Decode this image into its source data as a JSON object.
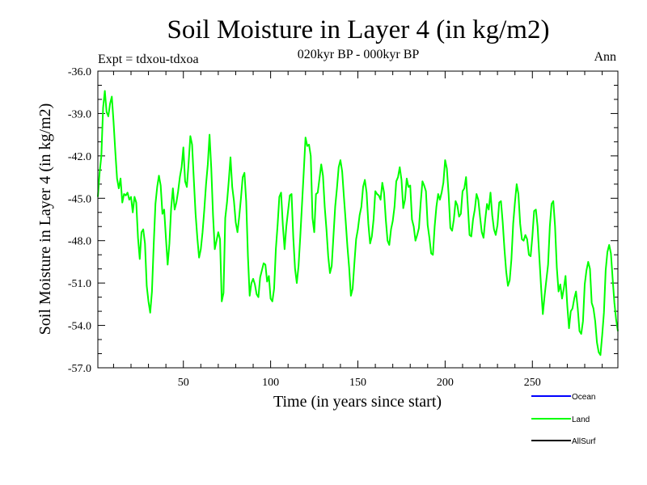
{
  "chart_data": {
    "type": "line",
    "title": "Soil Moisture in Layer 4 (in kg/m2)",
    "subtitle": "020kyr BP - 000kyr BP",
    "left_label": "Expt = tdxou-tdxoa",
    "right_label": "Ann",
    "xlabel": "Time (in years since start)",
    "ylabel": "Soil Moisture in Layer 4 (in kg/m2)",
    "xlim": [
      1,
      299
    ],
    "ylim": [
      -57.0,
      -36.0
    ],
    "x_ticks": [
      50,
      100,
      150,
      200,
      250
    ],
    "y_ticks": [
      "-36.0",
      "-39.0",
      "-42.0",
      "-45.0",
      "-48.0",
      "-51.0",
      "-54.0",
      "-57.0"
    ],
    "grid": false,
    "legend_position": "bottom-right",
    "legend": [
      {
        "name": "Ocean",
        "color": "#0000ff"
      },
      {
        "name": "Land",
        "color": "#00ff00"
      },
      {
        "name": "AllSurf",
        "color": "#000000"
      }
    ],
    "series": [
      {
        "name": "Land",
        "color": "#00ff00",
        "x_start": 1,
        "x_step": 1,
        "values": [
          -44.9,
          -43.2,
          -42.0,
          -38.6,
          -37.4,
          -38.9,
          -39.2,
          -38.3,
          -37.8,
          -39.6,
          -41.7,
          -43.6,
          -44.3,
          -43.6,
          -45.3,
          -44.7,
          -44.8,
          -44.6,
          -45.1,
          -44.9,
          -46.0,
          -44.9,
          -45.3,
          -47.8,
          -49.3,
          -47.4,
          -47.2,
          -48.2,
          -51.2,
          -52.3,
          -53.1,
          -51.6,
          -48.3,
          -45.4,
          -44.2,
          -43.4,
          -44.1,
          -46.1,
          -45.8,
          -47.8,
          -49.7,
          -48.2,
          -45.7,
          -44.3,
          -45.8,
          -45.3,
          -44.5,
          -43.5,
          -42.8,
          -41.4,
          -43.8,
          -44.2,
          -42.5,
          -40.6,
          -41.2,
          -43.7,
          -46.1,
          -47.8,
          -49.2,
          -48.6,
          -47.4,
          -45.8,
          -44.0,
          -42.6,
          -40.5,
          -42.9,
          -46.2,
          -48.6,
          -48.0,
          -47.4,
          -47.9,
          -52.3,
          -51.7,
          -46.4,
          -45.3,
          -43.8,
          -42.1,
          -44.2,
          -45.2,
          -46.7,
          -47.4,
          -46.3,
          -45.0,
          -43.5,
          -43.2,
          -45.2,
          -49.1,
          -51.9,
          -51.0,
          -50.7,
          -51.1,
          -51.8,
          -52.0,
          -50.6,
          -50.1,
          -49.6,
          -49.7,
          -50.9,
          -50.5,
          -52.1,
          -52.3,
          -51.4,
          -48.6,
          -46.9,
          -44.9,
          -44.6,
          -46.9,
          -48.6,
          -47.0,
          -45.9,
          -44.8,
          -44.7,
          -47.8,
          -50.0,
          -51.0,
          -49.8,
          -47.7,
          -45.4,
          -43.1,
          -40.7,
          -41.3,
          -41.2,
          -42.0,
          -46.4,
          -47.4,
          -44.7,
          -44.6,
          -43.6,
          -42.6,
          -43.4,
          -45.6,
          -47.2,
          -49.1,
          -50.3,
          -49.8,
          -47.7,
          -45.6,
          -44.3,
          -42.8,
          -42.3,
          -43.1,
          -44.9,
          -46.6,
          -48.4,
          -49.9,
          -51.9,
          -51.4,
          -49.6,
          -47.9,
          -47.2,
          -46.2,
          -45.6,
          -44.2,
          -43.7,
          -44.6,
          -46.8,
          -48.2,
          -47.7,
          -46.5,
          -44.5,
          -44.7,
          -44.8,
          -45.1,
          -43.9,
          -44.6,
          -46.5,
          -48.0,
          -48.3,
          -47.2,
          -46.6,
          -45.6,
          -43.8,
          -43.5,
          -42.8,
          -43.7,
          -45.7,
          -45.1,
          -43.6,
          -44.2,
          -44.1,
          -46.5,
          -47.0,
          -48.0,
          -47.6,
          -47.1,
          -45.3,
          -43.8,
          -44.1,
          -44.5,
          -46.9,
          -47.8,
          -48.9,
          -49.0,
          -47.0,
          -45.6,
          -44.7,
          -45.1,
          -44.6,
          -43.9,
          -42.3,
          -42.9,
          -44.7,
          -47.1,
          -47.3,
          -46.5,
          -45.2,
          -45.5,
          -46.3,
          -46.1,
          -44.5,
          -44.3,
          -43.5,
          -45.5,
          -47.6,
          -47.7,
          -46.5,
          -45.8,
          -44.7,
          -45.1,
          -46.3,
          -47.4,
          -47.8,
          -46.5,
          -45.4,
          -45.8,
          -44.6,
          -46.2,
          -47.2,
          -47.6,
          -46.9,
          -45.3,
          -45.2,
          -46.7,
          -48.6,
          -50.2,
          -51.2,
          -50.8,
          -49.3,
          -46.8,
          -45.3,
          -44.0,
          -44.7,
          -46.8,
          -47.9,
          -48.0,
          -47.6,
          -47.9,
          -49.0,
          -49.1,
          -47.7,
          -45.9,
          -45.8,
          -47.0,
          -49.2,
          -51.3,
          -53.2,
          -51.9,
          -50.8,
          -49.7,
          -47.0,
          -45.4,
          -45.2,
          -47.0,
          -49.9,
          -51.6,
          -51.1,
          -52.1,
          -51.4,
          -50.5,
          -52.6,
          -54.2,
          -53.0,
          -52.8,
          -52.1,
          -51.6,
          -52.8,
          -54.4,
          -54.6,
          -53.7,
          -51.1,
          -50.1,
          -49.5,
          -50.0,
          -52.4,
          -52.8,
          -53.7,
          -55.2,
          -55.9,
          -56.1,
          -54.7,
          -53.1,
          -50.1,
          -48.8,
          -48.3,
          -48.9,
          -50.7,
          -52.4,
          -53.6,
          -54.4
        ]
      }
    ]
  }
}
